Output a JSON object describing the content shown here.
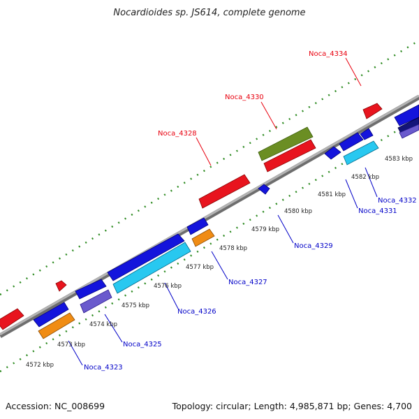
{
  "title": "Nocardioides sp. JS614, complete genome",
  "accession": "Accession: NC_008699",
  "genome_info": "Topology: circular; Length: 4,985,871 bp; Genes: 4,700",
  "colors": {
    "backbone": "#8c8c8c",
    "tick_dots": "#2e8b22",
    "label_top": "#e8000e",
    "label_bottom": "#0000c8",
    "red_gene": "#e8141e",
    "blue_gene": "#1414dc",
    "cyan_gene": "#28c8f0",
    "orange_gene": "#f08c14",
    "purple_gene": "#6a5acd",
    "olive_gene": "#6b8e23",
    "navy_gene": "#14147a"
  },
  "kbp_ticks": [
    "4572 kbp",
    "4573 kbp",
    "4574 kbp",
    "4575 kbp",
    "4576 kbp",
    "4577 kbp",
    "4578 kbp",
    "4579 kbp",
    "4580 kbp",
    "4581 kbp",
    "4582 kbp",
    "4583 kbp"
  ],
  "gene_labels": {
    "noca_4334": "Noca_4334",
    "noca_4330": "Noca_4330",
    "noca_4328": "Noca_4328",
    "noca_4332": "Noca_4332",
    "noca_4331": "Noca_4331",
    "noca_4329": "Noca_4329",
    "noca_4327": "Noca_4327",
    "noca_4326": "Noca_4326",
    "noca_4325": "Noca_4325",
    "noca_4323": "Noca_4323"
  }
}
